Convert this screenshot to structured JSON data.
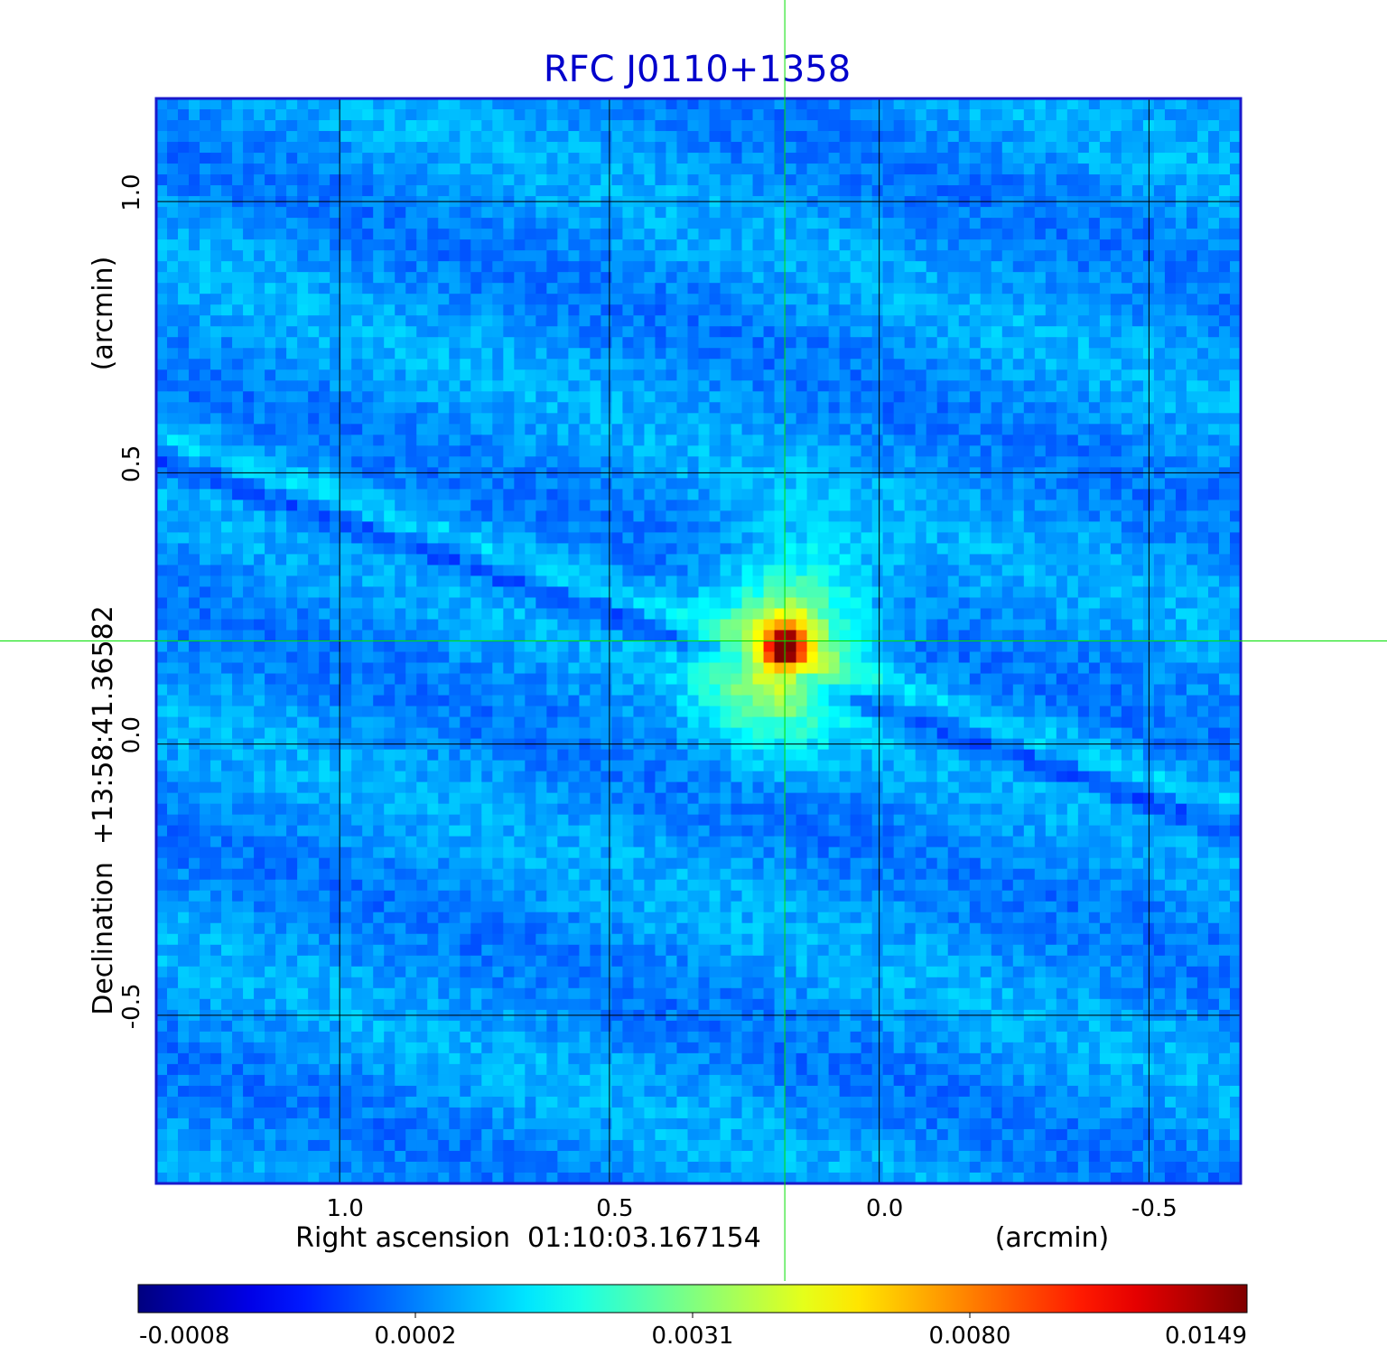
{
  "chart_data": {
    "type": "heatmap",
    "title": "RFC J0110+1358",
    "xlabel": "Right ascension  01:10:03.167154",
    "xunit": "(arcmin)",
    "ylabel": "Declination  +13:58:41.36582",
    "yunit": "(arcmin)",
    "xlim": [
      1.34,
      -0.67
    ],
    "ylim": [
      -0.81,
      1.19
    ],
    "x_ticks": [
      {
        "value": 1.0,
        "label": "1.0"
      },
      {
        "value": 0.5,
        "label": "0.5"
      },
      {
        "value": 0.0,
        "label": "0.0"
      },
      {
        "value": -0.5,
        "label": "-0.5"
      }
    ],
    "y_ticks": [
      {
        "value": 1.0,
        "label": "1.0"
      },
      {
        "value": 0.5,
        "label": "0.5"
      },
      {
        "value": 0.0,
        "label": "0.0"
      },
      {
        "value": -0.5,
        "label": "-0.5"
      }
    ],
    "grid": true,
    "crosshair": {
      "x": 0.175,
      "y": 0.19
    },
    "colormap": "jet",
    "colorbar": {
      "labels": [
        "-0.0008",
        "0.0002",
        "0.0031",
        "0.0080",
        "0.0149"
      ]
    },
    "source": {
      "peak_x": 0.175,
      "peak_y": 0.18,
      "peak_value": 0.0149,
      "halo_value": 0.0031
    },
    "background_value": 0.0002,
    "stripe_angle_deg": 19
  },
  "colors": {
    "title": "#0000cc",
    "frame": "#1a1acc",
    "grid": "#000000",
    "crosshair": "#00e000"
  }
}
